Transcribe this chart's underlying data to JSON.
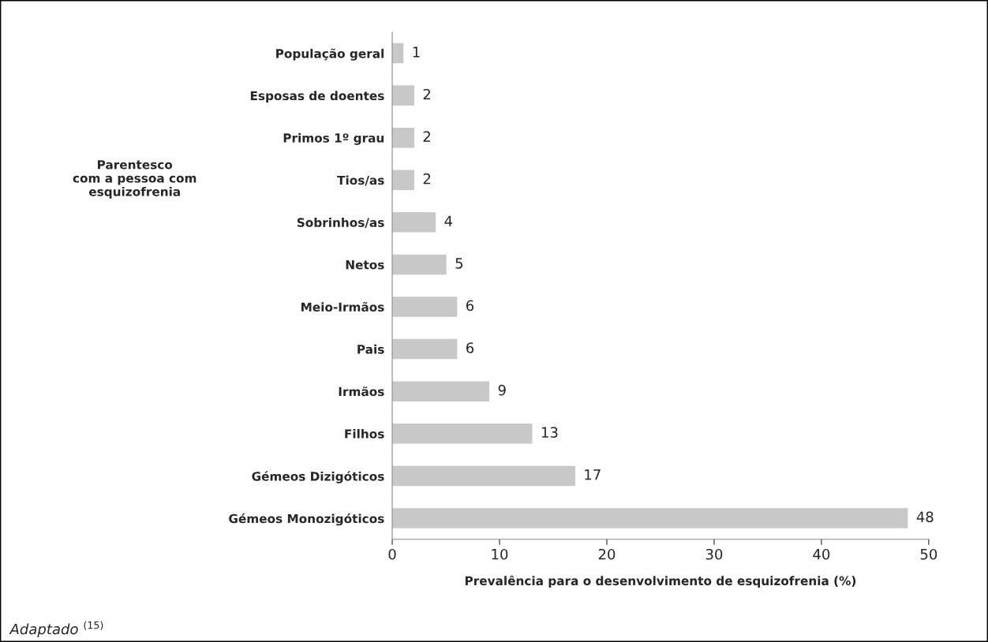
{
  "chart_data": {
    "type": "bar",
    "orientation": "horizontal",
    "categories": [
      "População geral",
      "Esposas de doentes",
      "Primos 1º grau",
      "Tios/as",
      "Sobrinhos/as",
      "Netos",
      "Meio-Irmãos",
      "Pais",
      "Irmãos",
      "Filhos",
      "Gémeos Dizigóticos",
      "Gémeos Monozigóticos"
    ],
    "values": [
      1,
      2,
      2,
      2,
      4,
      5,
      6,
      6,
      9,
      13,
      17,
      48
    ],
    "color": "#c8c8c8",
    "xlim": [
      0,
      50
    ],
    "xticks": [
      0,
      10,
      20,
      30,
      40,
      50
    ],
    "xlabel": "Prevalência para o desenvolvimento de esquizofrenia (%)",
    "ylabel": "Parentesco\ncom a pessoa com\nesquizofrenia",
    "data_labels": true,
    "grid": false,
    "legend": false,
    "annotations": [
      "Adaptado $^{(15)}$"
    ]
  }
}
